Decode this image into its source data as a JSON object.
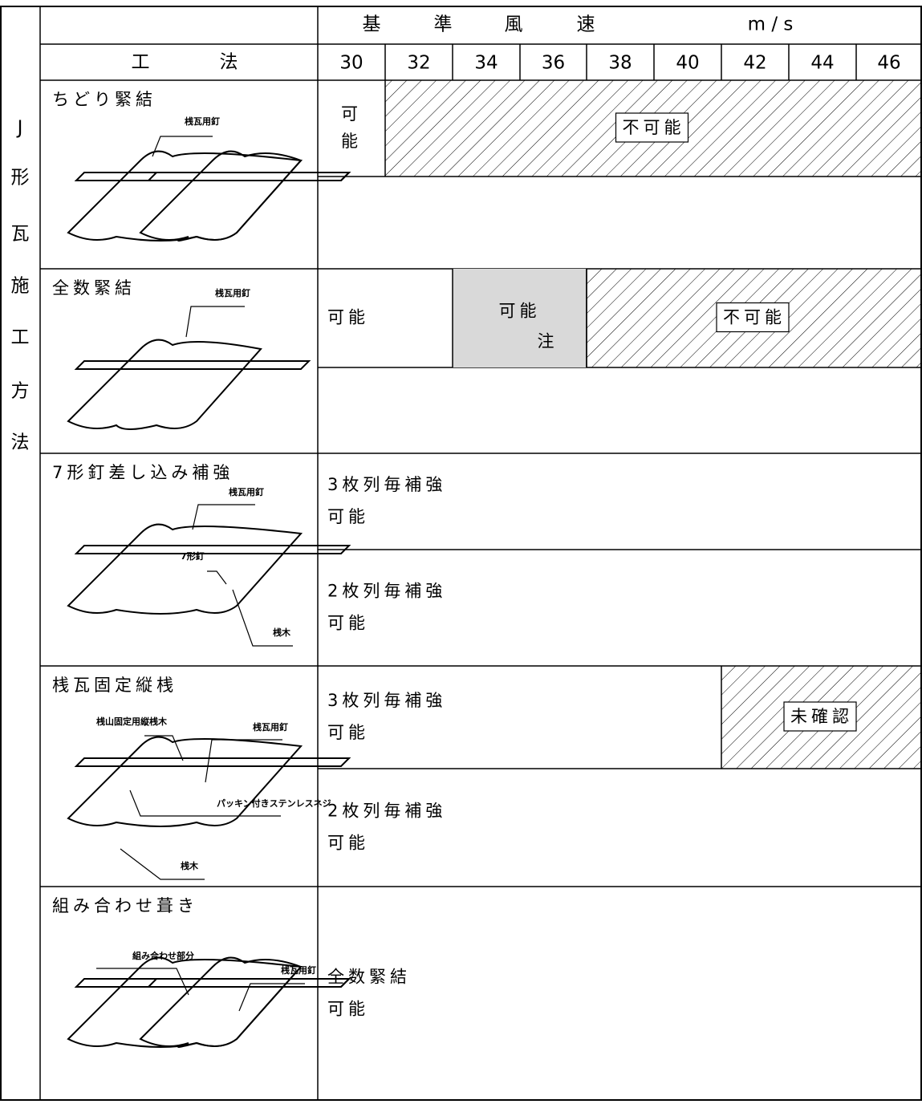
{
  "header": {
    "title_chars": [
      "基",
      "準",
      "風",
      "速"
    ],
    "unit": "m / s",
    "method_chars": [
      "工",
      "法"
    ],
    "speeds": [
      30,
      32,
      34,
      36,
      38,
      40,
      42,
      44,
      46
    ]
  },
  "side_label": [
    "J",
    "形",
    "瓦",
    "施",
    "工",
    "方",
    "法"
  ],
  "methods": [
    {
      "name": "ちどり緊結",
      "callouts": [
        "桟瓦用釘"
      ],
      "rows": [
        [
          {
            "lines": [
              "可",
              "能"
            ]
          },
          {
            "lines": [
              "不可能"
            ]
          }
        ],
        []
      ]
    },
    {
      "name": "全数緊結",
      "callouts": [
        "桟瓦用釘"
      ],
      "rows": [
        [
          {
            "lines": [
              "可能"
            ]
          },
          {
            "lines": [
              "可能"
            ],
            "note": "注"
          },
          {
            "lines": [
              "不可能"
            ]
          }
        ],
        []
      ]
    },
    {
      "name": "7形釘差し込み補強",
      "callouts": [
        "桟瓦用釘",
        "7形釘",
        "桟木"
      ],
      "rows": [
        [
          {
            "lines": [
              "3枚列毎補強",
              "可能"
            ]
          }
        ],
        [
          {
            "lines": [
              "2枚列毎補強",
              "可能"
            ]
          }
        ]
      ]
    },
    {
      "name": "桟瓦固定縦桟",
      "callouts": [
        "桟山固定用縦桟木",
        "桟瓦用釘",
        "パッキン付きステンレスネジ",
        "桟木"
      ],
      "rows": [
        [
          {
            "lines": [
              "3枚列毎補強",
              "可能"
            ]
          },
          {
            "lines": [
              "未確認"
            ]
          }
        ],
        [
          {
            "lines": [
              "2枚列毎補強",
              "可能"
            ]
          }
        ]
      ]
    },
    {
      "name": "組み合わせ葺き",
      "callouts": [
        "組み合わせ部分",
        "桟瓦用釘"
      ],
      "rows": [
        [
          {
            "lines": [
              "全数緊結",
              "可能"
            ]
          }
        ]
      ]
    }
  ]
}
